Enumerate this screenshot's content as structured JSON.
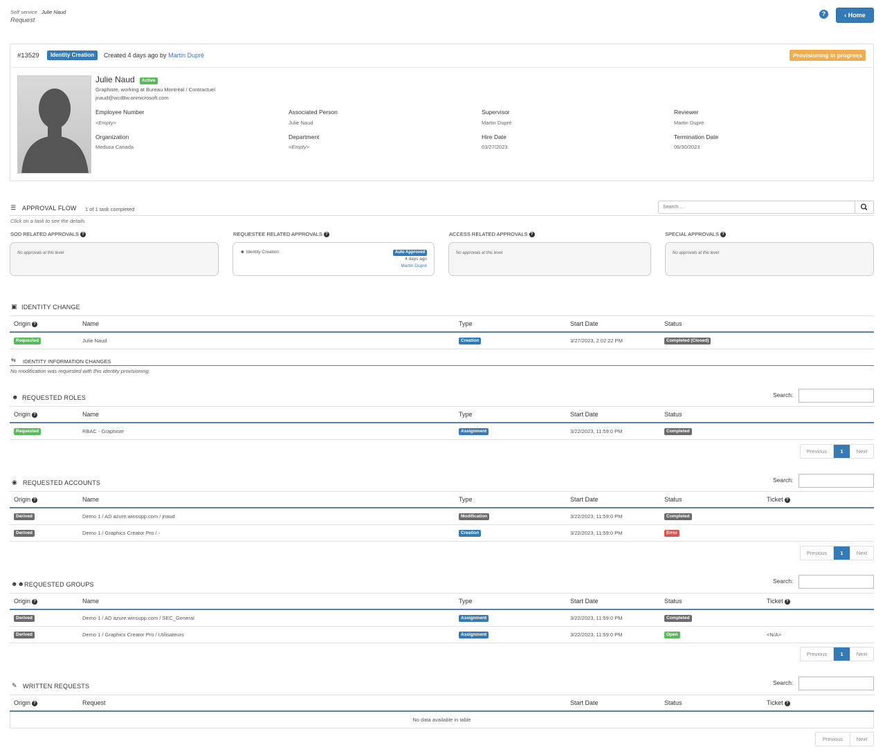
{
  "header": {
    "breadcrumb_root": "Self service",
    "breadcrumb_current": "Julie Naud",
    "subtitle": "Request",
    "help_icon": "question-circle-icon",
    "home_label": "Home"
  },
  "request": {
    "number": "#13529",
    "type": "Identity Creation",
    "created_prefix": "Created 4 days ago by",
    "created_by": "Martin Dupré",
    "status": "Provisioning in progress"
  },
  "person": {
    "name": "Julie Naud",
    "state": "Active",
    "job": "Graphiste, working at Bureau Montréal / Contractuel",
    "email": "jnaud@wcd8w.onmicrosoft.com",
    "fields": [
      {
        "label": "Employee Number",
        "value": "<Empty>",
        "style": "empty"
      },
      {
        "label": "Associated Person",
        "value": "Julie Naud",
        "style": "link"
      },
      {
        "label": "Supervisor",
        "value": "Martin Dupré",
        "style": "link"
      },
      {
        "label": "Reviewer",
        "value": "Martin Dupré",
        "style": "link"
      },
      {
        "label": "Organization",
        "value": "Medusa Canada",
        "style": "plain"
      },
      {
        "label": "Department",
        "value": "<Empty>",
        "style": "empty"
      },
      {
        "label": "Hire Date",
        "value": "03/27/2023",
        "style": "plain"
      },
      {
        "label": "Termination Date",
        "value": "06/30/2023",
        "style": "plain"
      }
    ]
  },
  "approval": {
    "title": "APPROVAL FLOW",
    "progress": "1 of 1 task completed",
    "search_placeholder": "Search ...",
    "hint": "Click on a task to see the details",
    "columns": [
      {
        "title": "SOD RELATED APPROVALS",
        "empty": "No approvals at this level"
      },
      {
        "title": "REQUESTEE RELATED APPROVALS",
        "task": "Identity Creation",
        "badge": "Auto Approved",
        "when": "4 days ago",
        "by": "Martin Dupré"
      },
      {
        "title": "ACCESS RELATED APPROVALS",
        "empty": "No approvals at this level"
      },
      {
        "title": "SPECIAL APPROVALS",
        "empty": "No approvals at this level"
      }
    ]
  },
  "identity_change": {
    "title": "IDENTITY CHANGE",
    "headers": {
      "origin": "Origin",
      "name": "Name",
      "type": "Type",
      "start": "Start Date",
      "status": "Status"
    },
    "row": {
      "origin": "Requested",
      "name": "Julie Naud",
      "type": "Creation",
      "start": "3/27/2023, 2:02:22 PM",
      "status": "Completed (Closed)"
    }
  },
  "info_changes": {
    "title": "IDENTITY INFORMATION CHANGES",
    "note": "No modification was requested with this identity provisioning."
  },
  "roles": {
    "title": "REQUESTED ROLES",
    "search_label": "Search:",
    "headers": {
      "origin": "Origin",
      "name": "Name",
      "type": "Type",
      "start": "Start Date",
      "status": "Status"
    },
    "rows": [
      {
        "origin": "Requested",
        "name": "RBAC - Graphiste",
        "type": "Assignment",
        "start": "3/22/2023, 11:59:0 PM",
        "status": "Completed"
      }
    ],
    "pager": {
      "prev": "Previous",
      "page": "1",
      "next": "Next"
    }
  },
  "accounts": {
    "title": "REQUESTED ACCOUNTS",
    "search_label": "Search:",
    "headers": {
      "origin": "Origin",
      "name": "Name",
      "type": "Type",
      "start": "Start Date",
      "status": "Status",
      "ticket": "Ticket"
    },
    "rows": [
      {
        "origin": "Derived",
        "name": "Demo 1 / AD azure.winsupp.com / jnaud",
        "type": "Modification",
        "start": "3/22/2023, 11:59:0 PM",
        "status": "Completed",
        "ticket": ""
      },
      {
        "origin": "Derived",
        "name": "Demo 1 / Graphics Creator Pro / -",
        "type": "Creation",
        "start": "3/22/2023, 11:59:0 PM",
        "status": "Error",
        "ticket": ""
      }
    ],
    "pager": {
      "prev": "Previous",
      "page": "1",
      "next": "Next"
    }
  },
  "groups": {
    "title": "REQUESTED GROUPS",
    "search_label": "Search:",
    "headers": {
      "origin": "Origin",
      "name": "Name",
      "type": "Type",
      "start": "Start Date",
      "status": "Status",
      "ticket": "Ticket"
    },
    "rows": [
      {
        "origin": "Derived",
        "name": "Demo 1 / AD azure.winsupp.com / SEC_General",
        "type": "Assignment",
        "start": "3/22/2023, 11:59:0 PM",
        "status": "Completed",
        "ticket": ""
      },
      {
        "origin": "Derived",
        "name": "Demo 1 / Graphics Creator Pro / Utilisateurs",
        "type": "Assignment",
        "start": "3/22/2023, 11:59:0 PM",
        "status": "Open",
        "ticket": "<N/A>"
      }
    ],
    "pager": {
      "prev": "Previous",
      "page": "1",
      "next": "Next"
    }
  },
  "written": {
    "title": "WRITTEN REQUESTS",
    "search_label": "Search:",
    "headers": {
      "origin": "Origin",
      "request": "Request",
      "start": "Start Date",
      "status": "Status",
      "ticket": "Ticket"
    },
    "empty": "No data available in table",
    "pager": {
      "prev": "Previous",
      "next": "Next"
    }
  },
  "colors": {
    "primary": "#337ab7",
    "success": "#5cb85c",
    "warning": "#f0ad4e",
    "danger": "#d9534f",
    "neutral": "#6b6b6b"
  }
}
